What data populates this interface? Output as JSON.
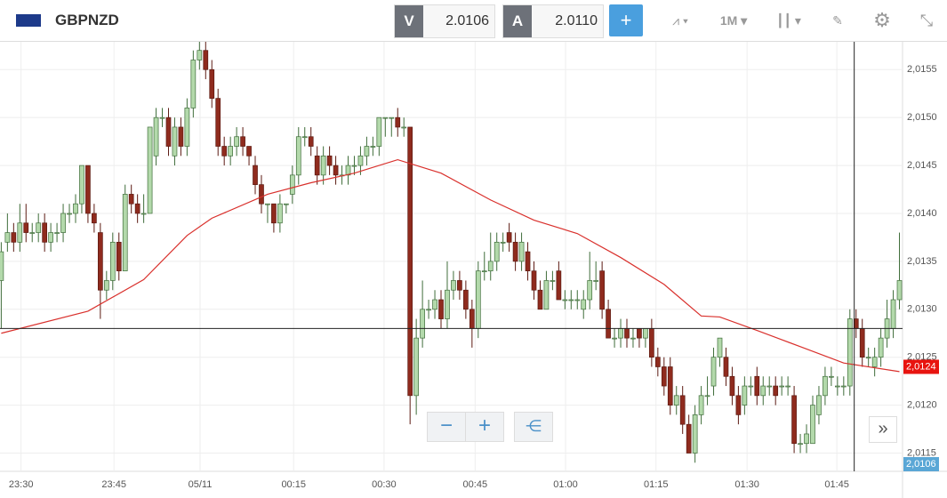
{
  "toolbar": {
    "symbol": "GBPNZD",
    "sell_label": "V",
    "sell_price": "2.0106",
    "buy_label": "A",
    "buy_price": "2.0110",
    "timeframe": "1M"
  },
  "chart_data": {
    "type": "candlestick",
    "xlim": [
      -0.2,
      145.5
    ],
    "ylim": [
      2.01131,
      2.01579
    ],
    "xticks": [
      {
        "value": 3.2,
        "label": "23:30"
      },
      {
        "value": 18.2,
        "label": "23:45"
      },
      {
        "value": 32.1,
        "label": "05/11"
      },
      {
        "value": 47.2,
        "label": "00:15"
      },
      {
        "value": 61.8,
        "label": "00:30"
      },
      {
        "value": 76.5,
        "label": "00:45"
      },
      {
        "value": 91.1,
        "label": "01:00"
      },
      {
        "value": 105.7,
        "label": "01:15"
      },
      {
        "value": 120.4,
        "label": "01:30"
      },
      {
        "value": 134.9,
        "label": "01:45"
      }
    ],
    "yticks": [
      {
        "value": 2.0115,
        "label": "2,0115"
      },
      {
        "value": 2.012,
        "label": "2,0120"
      },
      {
        "value": 2.0125,
        "label": "2,0125"
      },
      {
        "value": 2.013,
        "label": "2,0130"
      },
      {
        "value": 2.0135,
        "label": "2,0135"
      },
      {
        "value": 2.014,
        "label": "2,0140"
      },
      {
        "value": 2.0145,
        "label": "2,0145"
      },
      {
        "value": 2.015,
        "label": "2,0150"
      },
      {
        "value": 2.0155,
        "label": "2,0155"
      }
    ],
    "grid": true,
    "up_color": "#b3d9ab",
    "down_color": "#8f2b1e",
    "candles": [
      [
        2.0133,
        2.0137,
        2.0128,
        2.0136
      ],
      [
        2.0137,
        2.014,
        2.0136,
        2.0138
      ],
      [
        2.0138,
        2.0139,
        2.0136,
        2.0137
      ],
      [
        2.0137,
        2.0141,
        2.0136,
        2.0139
      ],
      [
        2.0139,
        2.0141,
        2.0137,
        2.0138
      ],
      [
        2.0138,
        2.0139,
        2.0137,
        2.0138
      ],
      [
        2.0138,
        2.014,
        2.0137,
        2.0139
      ],
      [
        2.0139,
        2.014,
        2.0136,
        2.0137
      ],
      [
        2.0137,
        2.0139,
        2.0136,
        2.0138
      ],
      [
        2.0138,
        2.0139,
        2.0137,
        2.0138
      ],
      [
        2.0138,
        2.0141,
        2.0137,
        2.014
      ],
      [
        2.014,
        2.0141,
        2.0139,
        2.014
      ],
      [
        2.014,
        2.0142,
        2.0139,
        2.0141
      ],
      [
        2.0141,
        2.0145,
        2.014,
        2.0145
      ],
      [
        2.0145,
        2.0145,
        2.0139,
        2.014
      ],
      [
        2.014,
        2.0141,
        2.0138,
        2.0139
      ],
      [
        2.0138,
        2.0139,
        2.0129,
        2.0132
      ],
      [
        2.0132,
        2.0134,
        2.0131,
        2.0133
      ],
      [
        2.0133,
        2.0138,
        2.0132,
        2.0137
      ],
      [
        2.0137,
        2.0138,
        2.0133,
        2.0134
      ],
      [
        2.0134,
        2.0143,
        2.0134,
        2.0142
      ],
      [
        2.0142,
        2.0143,
        2.014,
        2.0141
      ],
      [
        2.0141,
        2.0142,
        2.0139,
        2.014
      ],
      [
        2.014,
        2.0142,
        2.0139,
        2.014
      ],
      [
        2.014,
        2.0149,
        2.014,
        2.0149
      ],
      [
        2.0146,
        2.0151,
        2.0145,
        2.015
      ],
      [
        2.015,
        2.0151,
        2.0149,
        2.015
      ],
      [
        2.015,
        2.0151,
        2.0146,
        2.0147
      ],
      [
        2.0146,
        2.015,
        2.0145,
        2.0149
      ],
      [
        2.0149,
        2.015,
        2.0146,
        2.0147
      ],
      [
        2.0147,
        2.0152,
        2.0146,
        2.0151
      ],
      [
        2.0151,
        2.0157,
        2.015,
        2.0156
      ],
      [
        2.0156,
        2.0158,
        2.0155,
        2.0157
      ],
      [
        2.0157,
        2.0158,
        2.0154,
        2.0155
      ],
      [
        2.0155,
        2.0156,
        2.0151,
        2.0152
      ],
      [
        2.0152,
        2.0153,
        2.0146,
        2.0147
      ],
      [
        2.0147,
        2.0148,
        2.0145,
        2.0146
      ],
      [
        2.0146,
        2.0148,
        2.0145,
        2.0147
      ],
      [
        2.0147,
        2.0149,
        2.0146,
        2.0148
      ],
      [
        2.0148,
        2.0149,
        2.0146,
        2.0147
      ],
      [
        2.0147,
        2.0147,
        2.0145,
        2.0146
      ],
      [
        2.0145,
        2.0146,
        2.0142,
        2.0143
      ],
      [
        2.0143,
        2.0144,
        2.014,
        2.0141
      ],
      [
        2.0141,
        2.0141,
        2.0139,
        2.0141
      ],
      [
        2.0141,
        2.0141,
        2.0138,
        2.0139
      ],
      [
        2.0139,
        2.0142,
        2.0138,
        2.0141
      ],
      [
        2.0141,
        2.0141,
        2.014,
        2.0141
      ],
      [
        2.0142,
        2.0145,
        2.0141,
        2.0144
      ],
      [
        2.0144,
        2.0149,
        2.0143,
        2.0148
      ],
      [
        2.0148,
        2.0149,
        2.0147,
        2.0148
      ],
      [
        2.0148,
        2.0149,
        2.0146,
        2.0147
      ],
      [
        2.0146,
        2.0147,
        2.0143,
        2.0144
      ],
      [
        2.0144,
        2.0147,
        2.0143,
        2.0146
      ],
      [
        2.0146,
        2.0147,
        2.0144,
        2.0145
      ],
      [
        2.0145,
        2.0146,
        2.0143,
        2.0144
      ],
      [
        2.0144,
        2.0145,
        2.0143,
        2.0144
      ],
      [
        2.0144,
        2.0146,
        2.0143,
        2.0145
      ],
      [
        2.0145,
        2.0146,
        2.0144,
        2.0145
      ],
      [
        2.0145,
        2.0147,
        2.0144,
        2.0146
      ],
      [
        2.0146,
        2.0148,
        2.0145,
        2.0147
      ],
      [
        2.0147,
        2.0148,
        2.0146,
        2.0147
      ],
      [
        2.0147,
        2.015,
        2.0146,
        2.015
      ],
      [
        2.015,
        2.015,
        2.0148,
        2.015
      ],
      [
        2.015,
        2.015,
        2.0148,
        2.015
      ],
      [
        2.015,
        2.0151,
        2.0148,
        2.0149
      ],
      [
        2.0149,
        2.015,
        2.0148,
        2.0149
      ],
      [
        2.0149,
        2.0149,
        2.0118,
        2.0121
      ],
      [
        2.0121,
        2.0129,
        2.0119,
        2.0127
      ],
      [
        2.0127,
        2.0133,
        2.0126,
        2.013
      ],
      [
        2.013,
        2.0131,
        2.0129,
        2.013
      ],
      [
        2.013,
        2.0132,
        2.0129,
        2.0131
      ],
      [
        2.0131,
        2.0132,
        2.0128,
        2.0129
      ],
      [
        2.0129,
        2.0135,
        2.0128,
        2.0132
      ],
      [
        2.0132,
        2.0134,
        2.0131,
        2.0133
      ],
      [
        2.0133,
        2.0134,
        2.0131,
        2.0132
      ],
      [
        2.0132,
        2.0133,
        2.0129,
        2.013
      ],
      [
        2.013,
        2.0131,
        2.0126,
        2.0128
      ],
      [
        2.0128,
        2.0135,
        2.0127,
        2.0134
      ],
      [
        2.0134,
        2.0136,
        2.0133,
        2.0134
      ],
      [
        2.0134,
        2.0138,
        2.0133,
        2.0135
      ],
      [
        2.0135,
        2.0138,
        2.0134,
        2.0137
      ],
      [
        2.0137,
        2.0138,
        2.0136,
        2.0137
      ],
      [
        2.0138,
        2.0139,
        2.0136,
        2.0137
      ],
      [
        2.0137,
        2.0138,
        2.0134,
        2.0135
      ],
      [
        2.0135,
        2.0138,
        2.0134,
        2.0137
      ],
      [
        2.0136,
        2.0137,
        2.0133,
        2.0134
      ],
      [
        2.0134,
        2.0135,
        2.0131,
        2.0132
      ],
      [
        2.0132,
        2.0133,
        2.013,
        2.013
      ],
      [
        2.013,
        2.0134,
        2.013,
        2.0133
      ],
      [
        2.0133,
        2.0134,
        2.0132,
        2.0133
      ],
      [
        2.0134,
        2.0135,
        2.0131,
        2.0131
      ],
      [
        2.0131,
        2.0132,
        2.013,
        2.0131
      ],
      [
        2.0131,
        2.0132,
        2.013,
        2.0131
      ],
      [
        2.0131,
        2.0132,
        2.013,
        2.0131
      ],
      [
        2.013,
        2.0132,
        2.0129,
        2.0131
      ],
      [
        2.0131,
        2.0136,
        2.013,
        2.0133
      ],
      [
        2.0133,
        2.0135,
        2.0132,
        2.0133
      ],
      [
        2.0134,
        2.0135,
        2.0129,
        2.013
      ],
      [
        2.013,
        2.0131,
        2.0127,
        2.0127
      ],
      [
        2.0127,
        2.0128,
        2.0126,
        2.0127
      ],
      [
        2.0127,
        2.0129,
        2.0126,
        2.0128
      ],
      [
        2.0128,
        2.0129,
        2.0126,
        2.0127
      ],
      [
        2.0127,
        2.0128,
        2.0126,
        2.0127
      ],
      [
        2.0128,
        2.0128,
        2.0126,
        2.0127
      ],
      [
        2.0127,
        2.0128,
        2.0126,
        2.0128
      ],
      [
        2.0128,
        2.0129,
        2.0124,
        2.0125
      ],
      [
        2.0125,
        2.0126,
        2.0123,
        2.0124
      ],
      [
        2.0124,
        2.0125,
        2.0121,
        2.0122
      ],
      [
        2.0124,
        2.0125,
        2.0119,
        2.012
      ],
      [
        2.012,
        2.0122,
        2.0119,
        2.0121
      ],
      [
        2.0121,
        2.0122,
        2.0117,
        2.0118
      ],
      [
        2.0118,
        2.0119,
        2.0115,
        2.0115
      ],
      [
        2.0115,
        2.012,
        2.0114,
        2.0119
      ],
      [
        2.0119,
        2.0122,
        2.0118,
        2.0121
      ],
      [
        2.0121,
        2.0123,
        2.012,
        2.0121
      ],
      [
        2.0122,
        2.0126,
        2.0121,
        2.0125
      ],
      [
        2.0125,
        2.0127,
        2.0124,
        2.0127
      ],
      [
        2.0125,
        2.0126,
        2.0122,
        2.0123
      ],
      [
        2.0123,
        2.0124,
        2.012,
        2.0121
      ],
      [
        2.0121,
        2.0122,
        2.0118,
        2.0119
      ],
      [
        2.012,
        2.0123,
        2.0119,
        2.0122
      ],
      [
        2.0122,
        2.0123,
        2.0121,
        2.0122
      ],
      [
        2.0123,
        2.0124,
        2.012,
        2.0121
      ],
      [
        2.0121,
        2.0123,
        2.012,
        2.0122
      ],
      [
        2.0122,
        2.0123,
        2.0121,
        2.0122
      ],
      [
        2.0122,
        2.0123,
        2.012,
        2.0121
      ],
      [
        2.0122,
        2.0123,
        2.0121,
        2.0122
      ],
      [
        2.0122,
        2.0123,
        2.0121,
        2.0122
      ],
      [
        2.0121,
        2.0122,
        2.0115,
        2.0116
      ],
      [
        2.0116,
        2.0117,
        2.0115,
        2.0116
      ],
      [
        2.0116,
        2.0118,
        2.0115,
        2.0117
      ],
      [
        2.0116,
        2.0121,
        2.0116,
        2.012
      ],
      [
        2.0119,
        2.0122,
        2.0118,
        2.0121
      ],
      [
        2.0121,
        2.0124,
        2.012,
        2.0123
      ],
      [
        2.0123,
        2.0124,
        2.0122,
        2.0123
      ],
      [
        2.0122,
        2.0123,
        2.0121,
        2.0122
      ],
      [
        2.0122,
        2.0123,
        2.0121,
        2.0122
      ],
      [
        2.0122,
        2.013,
        2.0121,
        2.0129
      ],
      [
        2.0129,
        2.013,
        2.0127,
        2.0128
      ],
      [
        2.0128,
        2.0129,
        2.0124,
        2.0125
      ],
      [
        2.0125,
        2.0126,
        2.0124,
        2.0125
      ],
      [
        2.0124,
        2.0126,
        2.0123,
        2.0125
      ],
      [
        2.0125,
        2.0128,
        2.0124,
        2.0127
      ],
      [
        2.0127,
        2.0131,
        2.0126,
        2.0129
      ],
      [
        2.0128,
        2.0132,
        2.0127,
        2.0131
      ],
      [
        2.0131,
        2.0138,
        2.013,
        2.0133
      ]
    ],
    "ma": {
      "color": "#d9302c",
      "x": [
        0,
        14,
        23,
        30,
        34,
        43,
        50,
        57,
        64,
        71,
        79,
        86,
        93,
        100,
        107,
        113,
        116,
        122,
        129,
        136,
        145
      ],
      "values": [
        2.01275,
        2.01298,
        2.01331,
        2.01377,
        2.01395,
        2.0142,
        2.01432,
        2.01442,
        2.01456,
        2.01442,
        2.01414,
        2.01393,
        2.01379,
        2.01354,
        2.01326,
        2.01293,
        2.01292,
        2.01278,
        2.01261,
        2.01244,
        2.01235
      ]
    },
    "crosshair": {
      "x": 137.7,
      "y": 2.0128
    },
    "last_price": {
      "value": 2.0124,
      "label": "2,0124",
      "color": "#e8140f"
    },
    "bid_label": "2,0106"
  }
}
